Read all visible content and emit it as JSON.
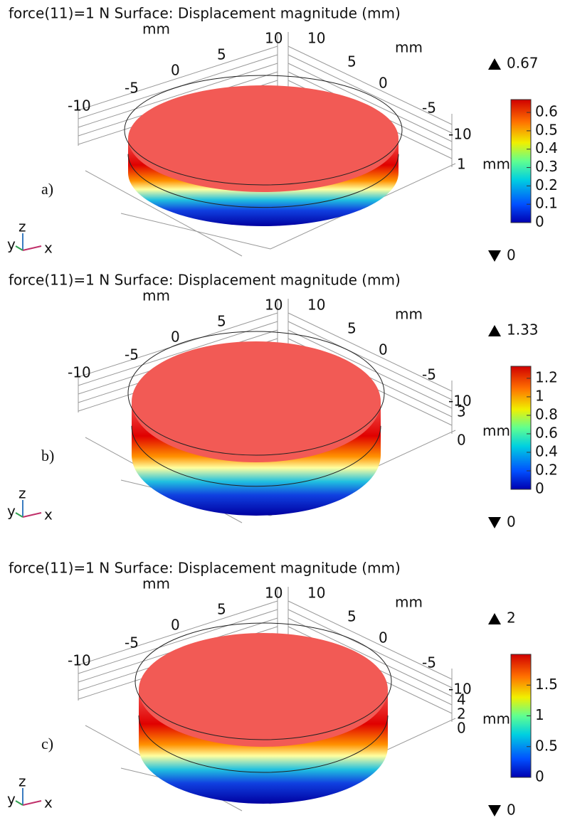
{
  "panels": [
    {
      "title": "force(11)=1 N Surface: Displacement magnitude (mm)",
      "label": "a)",
      "x_axis": {
        "unit": "mm",
        "ticks": [
          "-10",
          "-5",
          "0",
          "5",
          "10"
        ]
      },
      "y_axis": {
        "unit": "mm",
        "ticks": [
          "10",
          "5",
          "0",
          "-5",
          "-10"
        ]
      },
      "z_axis": {
        "ticks": [
          "1"
        ]
      },
      "colorbar": {
        "max": "0.67",
        "min": "0",
        "unit": "mm",
        "ticks": [
          "0.6",
          "0.5",
          "0.4",
          "0.3",
          "0.2",
          "0.1",
          "0"
        ]
      },
      "triad": [
        "y",
        "z",
        "x"
      ]
    },
    {
      "title": "force(11)=1 N Surface: Displacement magnitude (mm)",
      "label": "b)",
      "x_axis": {
        "unit": "mm",
        "ticks": [
          "-10",
          "-5",
          "0",
          "5",
          "10"
        ]
      },
      "y_axis": {
        "unit": "mm",
        "ticks": [
          "10",
          "5",
          "0",
          "-5",
          "-10"
        ]
      },
      "z_axis": {
        "ticks": [
          "3",
          "0"
        ]
      },
      "colorbar": {
        "max": "1.33",
        "min": "0",
        "unit": "mm",
        "ticks": [
          "1.2",
          "1",
          "0.8",
          "0.6",
          "0.4",
          "0.2",
          "0"
        ]
      },
      "triad": [
        "y",
        "z",
        "x"
      ]
    },
    {
      "title": "force(11)=1 N Surface: Displacement magnitude (mm)",
      "label": "c)",
      "x_axis": {
        "unit": "mm",
        "ticks": [
          "-10",
          "-5",
          "0",
          "5",
          "10"
        ]
      },
      "y_axis": {
        "unit": "mm",
        "ticks": [
          "10",
          "5",
          "0",
          "-5",
          "-10"
        ]
      },
      "z_axis": {
        "ticks": [
          "4",
          "2",
          "0"
        ]
      },
      "colorbar": {
        "max": "2",
        "min": "0",
        "unit": "mm",
        "ticks": [
          "1.5",
          "1",
          "0.5",
          "0"
        ]
      },
      "triad": [
        "y",
        "z",
        "x"
      ]
    }
  ]
}
